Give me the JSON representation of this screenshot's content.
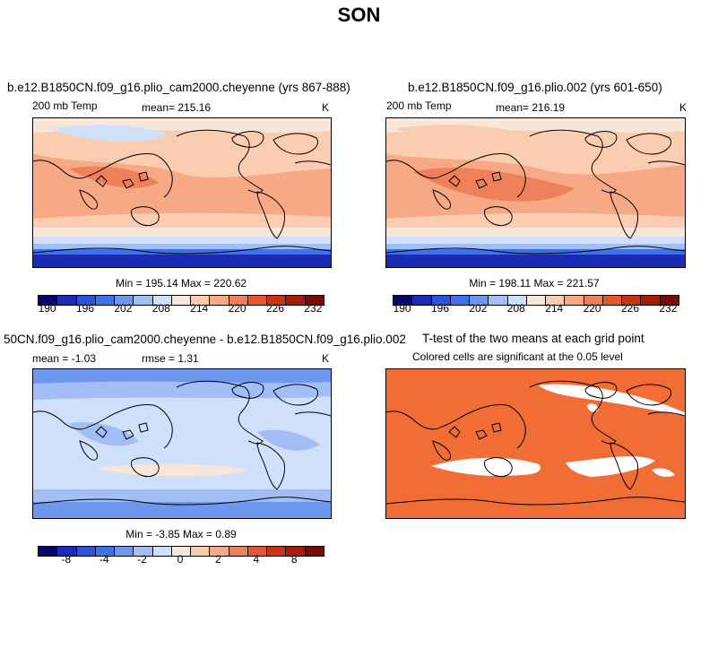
{
  "title": "SON",
  "panels": [
    {
      "title": "b.e12.B1850CN.f09_g16.plio_cam2000.cheyenne (yrs 867-888)",
      "left_label": "200 mb Temp",
      "mid_label": "mean= 215.16",
      "right_label": "K",
      "minmax": "Min = 195.14 Max = 220.62"
    },
    {
      "title": "b.e12.B1850CN.f09_g16.plio.002 (yrs 601-650)",
      "left_label": "200 mb Temp",
      "mid_label": "mean= 216.19",
      "right_label": "K",
      "minmax": "Min = 198.11 Max = 221.57"
    },
    {
      "title": "50CN.f09_g16.plio_cam2000.cheyenne - b.e12.B1850CN.f09_g16.plio.002",
      "left_label": "mean =   -1.03",
      "mid_label": "rmse =    1.31",
      "right_label": "K",
      "minmax": "Min =   -3.85 Max =    0.89"
    },
    {
      "title": "T-test of the two means at each grid point",
      "subtitle": "Colored cells are significant at the 0.05 level"
    }
  ],
  "colorbar_abs": {
    "colors": [
      "#08066e",
      "#1c2bb5",
      "#2b54d9",
      "#3d73ea",
      "#6e98ef",
      "#a3bdf5",
      "#cfe0fb",
      "#f8e7d9",
      "#fbcdb0",
      "#f7a884",
      "#ef805c",
      "#e3582f",
      "#c83516",
      "#a81b0b",
      "#7a0a04"
    ],
    "labels": [
      "190",
      "196",
      "202",
      "208",
      "214",
      "220",
      "226",
      "232"
    ]
  },
  "colorbar_diff": {
    "colors": [
      "#08066e",
      "#1c2bb5",
      "#2b54d9",
      "#3d73ea",
      "#6e98ef",
      "#a3bdf5",
      "#cfe0fb",
      "#f8e7d9",
      "#fbcdb0",
      "#f7a884",
      "#ef805c",
      "#e3582f",
      "#c83516",
      "#a81b0b",
      "#7a0a04"
    ],
    "labels": [
      "-8",
      "-4",
      "-2",
      "0",
      "2",
      "4",
      "8"
    ]
  }
}
